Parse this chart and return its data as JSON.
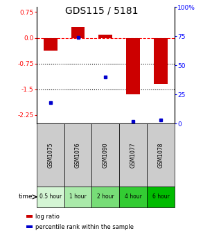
{
  "title": "GDS115 / 5181",
  "samples": [
    "GSM1075",
    "GSM1076",
    "GSM1090",
    "GSM1077",
    "GSM1078"
  ],
  "time_labels": [
    "0.5 hour",
    "1 hour",
    "2 hour",
    "4 hour",
    "6 hour"
  ],
  "log_ratios": [
    -0.38,
    0.32,
    0.09,
    -1.65,
    -1.35
  ],
  "percentile_ranks": [
    18,
    74,
    40,
    2,
    3
  ],
  "bar_color": "#cc0000",
  "dot_color": "#0000cc",
  "ylim_left": [
    -2.5,
    0.9
  ],
  "ylim_right": [
    0,
    100
  ],
  "yticks_left": [
    0.75,
    0.0,
    -0.75,
    -1.5,
    -2.25
  ],
  "yticks_right": [
    100,
    75,
    50,
    25,
    0
  ],
  "hlines_dotted": [
    -0.75,
    -1.5
  ],
  "hline_dashed": 0.0,
  "bg_color": "#ffffff",
  "plot_bg": "#ffffff",
  "time_colors": [
    "#d4f5d4",
    "#aaeaaa",
    "#77dd77",
    "#33cc33",
    "#00bb00"
  ],
  "sample_bg": "#cccccc",
  "bar_width": 0.5,
  "title_fontsize": 10,
  "tick_fontsize": 6.5,
  "sample_fontsize": 5.5,
  "time_fontsize": 5.5,
  "legend_fontsize": 6.0
}
